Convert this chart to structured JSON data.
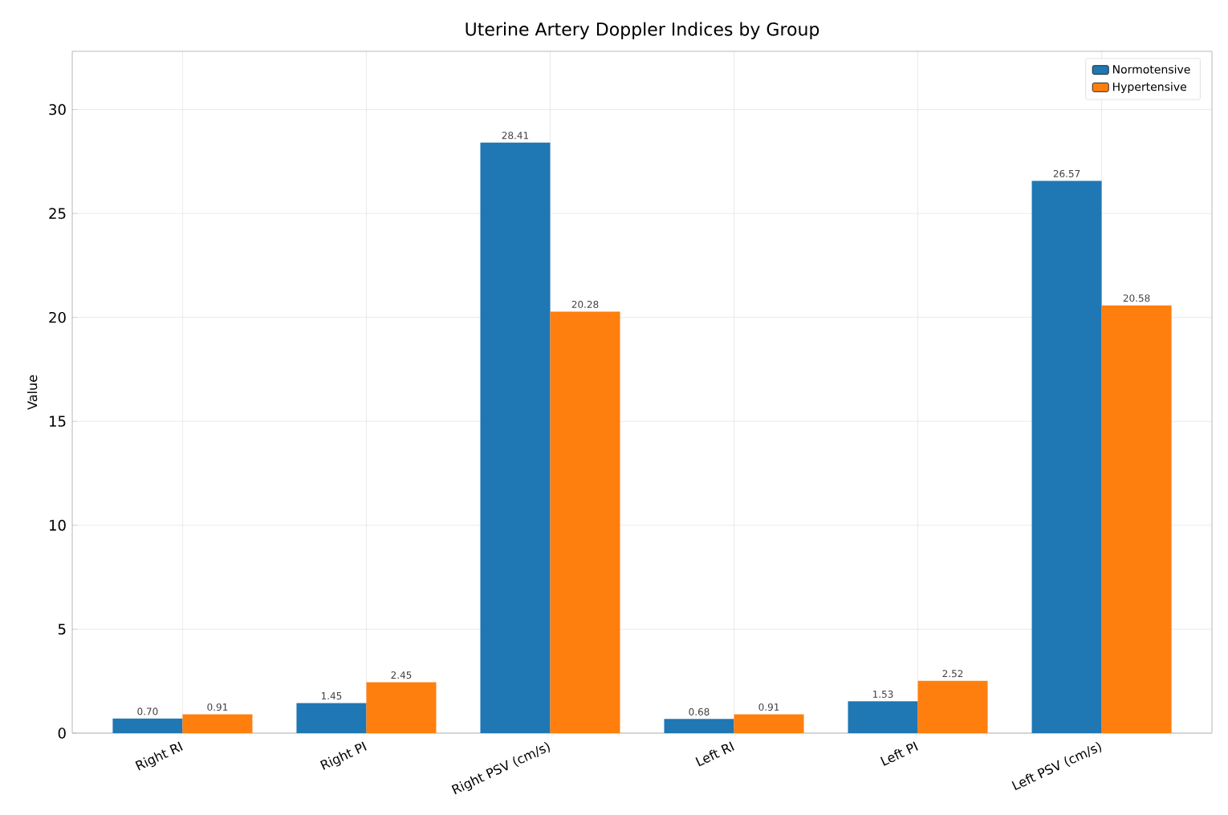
{
  "chart_data": {
    "type": "bar",
    "title": "Uterine Artery Doppler Indices by Group",
    "ylabel": "Value",
    "categories": [
      "Right RI",
      "Right PI",
      "Right PSV (cm/s)",
      "Left RI",
      "Left PI",
      "Left PSV (cm/s)"
    ],
    "series": [
      {
        "name": "Normotensive",
        "color": "#1f77b4",
        "values": [
          0.7,
          1.45,
          28.41,
          0.68,
          1.53,
          26.57
        ],
        "value_labels": [
          "0.70",
          "1.45",
          "28.41",
          "0.68",
          "1.53",
          "26.57"
        ]
      },
      {
        "name": "Hypertensive",
        "color": "#ff7f0e",
        "values": [
          0.91,
          2.45,
          20.28,
          0.91,
          2.52,
          20.58
        ],
        "value_labels": [
          "0.91",
          "2.45",
          "20.28",
          "0.91",
          "2.52",
          "20.58"
        ]
      }
    ],
    "ylim": [
      0,
      32.8
    ],
    "yticks": [
      0,
      5,
      10,
      15,
      20,
      25,
      30
    ],
    "grid": true,
    "legend": "top right"
  }
}
